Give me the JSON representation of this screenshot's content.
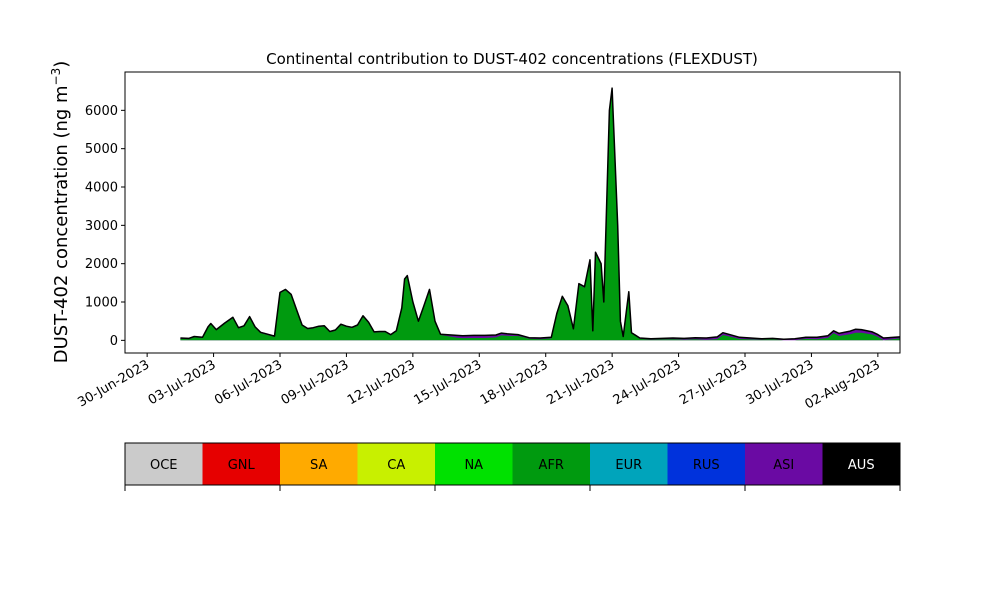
{
  "chart_data": {
    "type": "area",
    "title": "Continental contribution to DUST-402 concentrations (FLEXDUST)",
    "ylabel_main": "DUST-402 concentration (ng m",
    "ylabel_exp": "−3",
    "ylabel_close": ")",
    "ylim": [
      -330,
      7000
    ],
    "xlim": [
      "2023-06-29",
      "2023-08-03"
    ],
    "grid": false,
    "yticks": [
      0,
      1000,
      2000,
      3000,
      4000,
      5000,
      6000
    ],
    "ytick_labels": [
      "0",
      "1000",
      "2000",
      "3000",
      "4000",
      "5000",
      "6000"
    ],
    "xticks": [
      "2023-06-30",
      "2023-07-03",
      "2023-07-06",
      "2023-07-09",
      "2023-07-12",
      "2023-07-15",
      "2023-07-18",
      "2023-07-21",
      "2023-07-24",
      "2023-07-27",
      "2023-07-30",
      "2023-08-02"
    ],
    "xtick_labels": [
      "30-Jun-2023",
      "03-Jul-2023",
      "06-Jul-2023",
      "09-Jul-2023",
      "12-Jul-2023",
      "15-Jul-2023",
      "18-Jul-2023",
      "21-Jul-2023",
      "24-Jul-2023",
      "27-Jul-2023",
      "30-Jul-2023",
      "02-Aug-2023"
    ],
    "series": [
      {
        "name": "AFR",
        "color": "#009a0f"
      },
      {
        "name": "ASI",
        "color": "#6a0aa3"
      }
    ],
    "total_points": [
      [
        "2023-07-01T12:00",
        60
      ],
      [
        "2023-07-01T21:00",
        50
      ],
      [
        "2023-07-02T03:00",
        100
      ],
      [
        "2023-07-02T12:00",
        80
      ],
      [
        "2023-07-02T18:00",
        350
      ],
      [
        "2023-07-02T21:00",
        440
      ],
      [
        "2023-07-03T03:00",
        280
      ],
      [
        "2023-07-03T12:00",
        450
      ],
      [
        "2023-07-03T21:00",
        600
      ],
      [
        "2023-07-04T03:00",
        330
      ],
      [
        "2023-07-04T09:00",
        380
      ],
      [
        "2023-07-04T15:00",
        620
      ],
      [
        "2023-07-04T21:00",
        350
      ],
      [
        "2023-07-05T03:00",
        210
      ],
      [
        "2023-07-05T09:00",
        170
      ],
      [
        "2023-07-05T18:00",
        110
      ],
      [
        "2023-07-06T00:00",
        1250
      ],
      [
        "2023-07-06T06:00",
        1330
      ],
      [
        "2023-07-06T12:00",
        1200
      ],
      [
        "2023-07-06T18:00",
        800
      ],
      [
        "2023-07-07T00:00",
        400
      ],
      [
        "2023-07-07T06:00",
        310
      ],
      [
        "2023-07-07T12:00",
        330
      ],
      [
        "2023-07-07T18:00",
        370
      ],
      [
        "2023-07-08T00:00",
        380
      ],
      [
        "2023-07-08T06:00",
        230
      ],
      [
        "2023-07-08T12:00",
        270
      ],
      [
        "2023-07-08T18:00",
        420
      ],
      [
        "2023-07-09T00:00",
        370
      ],
      [
        "2023-07-09T06:00",
        340
      ],
      [
        "2023-07-09T12:00",
        400
      ],
      [
        "2023-07-09T18:00",
        640
      ],
      [
        "2023-07-10T00:00",
        470
      ],
      [
        "2023-07-10T06:00",
        220
      ],
      [
        "2023-07-10T12:00",
        230
      ],
      [
        "2023-07-10T18:00",
        230
      ],
      [
        "2023-07-11T00:00",
        150
      ],
      [
        "2023-07-11T06:00",
        250
      ],
      [
        "2023-07-11T12:00",
        850
      ],
      [
        "2023-07-11T15:00",
        1600
      ],
      [
        "2023-07-11T18:00",
        1690
      ],
      [
        "2023-07-12T00:00",
        1000
      ],
      [
        "2023-07-12T06:00",
        500
      ],
      [
        "2023-07-12T12:00",
        900
      ],
      [
        "2023-07-12T18:00",
        1330
      ],
      [
        "2023-07-13T00:00",
        500
      ],
      [
        "2023-07-13T06:00",
        160
      ],
      [
        "2023-07-13T18:00",
        140
      ],
      [
        "2023-07-14T06:00",
        120
      ],
      [
        "2023-07-14T18:00",
        130
      ],
      [
        "2023-07-15T06:00",
        130
      ],
      [
        "2023-07-15T18:00",
        140
      ],
      [
        "2023-07-16T00:00",
        190
      ],
      [
        "2023-07-16T06:00",
        170
      ],
      [
        "2023-07-16T18:00",
        150
      ],
      [
        "2023-07-17T06:00",
        70
      ],
      [
        "2023-07-17T18:00",
        60
      ],
      [
        "2023-07-18T06:00",
        80
      ],
      [
        "2023-07-18T12:00",
        700
      ],
      [
        "2023-07-18T18:00",
        1150
      ],
      [
        "2023-07-19T00:00",
        900
      ],
      [
        "2023-07-19T06:00",
        300
      ],
      [
        "2023-07-19T12:00",
        1480
      ],
      [
        "2023-07-19T18:00",
        1400
      ],
      [
        "2023-07-20T00:00",
        2100
      ],
      [
        "2023-07-20T03:00",
        250
      ],
      [
        "2023-07-20T06:00",
        2300
      ],
      [
        "2023-07-20T12:00",
        2000
      ],
      [
        "2023-07-20T15:00",
        1000
      ],
      [
        "2023-07-20T21:00",
        6000
      ],
      [
        "2023-07-21T00:00",
        6580
      ],
      [
        "2023-07-21T06:00",
        3000
      ],
      [
        "2023-07-21T09:00",
        500
      ],
      [
        "2023-07-21T12:00",
        100
      ],
      [
        "2023-07-21T18:00",
        1270
      ],
      [
        "2023-07-21T21:00",
        200
      ],
      [
        "2023-07-22T06:00",
        60
      ],
      [
        "2023-07-22T18:00",
        40
      ],
      [
        "2023-07-23T06:00",
        50
      ],
      [
        "2023-07-23T18:00",
        60
      ],
      [
        "2023-07-24T06:00",
        50
      ],
      [
        "2023-07-24T18:00",
        70
      ],
      [
        "2023-07-25T06:00",
        60
      ],
      [
        "2023-07-25T18:00",
        90
      ],
      [
        "2023-07-26T00:00",
        200
      ],
      [
        "2023-07-26T06:00",
        160
      ],
      [
        "2023-07-26T18:00",
        80
      ],
      [
        "2023-07-27T06:00",
        60
      ],
      [
        "2023-07-27T18:00",
        40
      ],
      [
        "2023-07-28T06:00",
        50
      ],
      [
        "2023-07-28T18:00",
        30
      ],
      [
        "2023-07-29T06:00",
        40
      ],
      [
        "2023-07-29T18:00",
        80
      ],
      [
        "2023-07-30T06:00",
        80
      ],
      [
        "2023-07-30T18:00",
        120
      ],
      [
        "2023-07-31T00:00",
        250
      ],
      [
        "2023-07-31T06:00",
        180
      ],
      [
        "2023-07-31T18:00",
        240
      ],
      [
        "2023-08-01T00:00",
        290
      ],
      [
        "2023-08-01T06:00",
        280
      ],
      [
        "2023-08-01T18:00",
        220
      ],
      [
        "2023-08-02T00:00",
        150
      ],
      [
        "2023-08-02T06:00",
        60
      ],
      [
        "2023-08-02T18:00",
        80
      ],
      [
        "2023-08-03T00:00",
        90
      ]
    ],
    "asi_points": [
      [
        "2023-07-01T12:00",
        20
      ],
      [
        "2023-07-13T06:00",
        20
      ],
      [
        "2023-07-14T00:00",
        60
      ],
      [
        "2023-07-15T00:00",
        70
      ],
      [
        "2023-07-16T00:00",
        60
      ],
      [
        "2023-07-17T00:00",
        30
      ],
      [
        "2023-07-19T00:00",
        30
      ],
      [
        "2023-07-22T00:00",
        20
      ],
      [
        "2023-07-24T00:00",
        30
      ],
      [
        "2023-07-26T00:00",
        60
      ],
      [
        "2023-07-28T00:00",
        20
      ],
      [
        "2023-07-31T00:00",
        60
      ],
      [
        "2023-08-01T00:00",
        90
      ],
      [
        "2023-08-02T00:00",
        60
      ],
      [
        "2023-08-03T00:00",
        40
      ]
    ]
  },
  "legend": {
    "items": [
      {
        "label": "OCE",
        "color": "#cbcbcb"
      },
      {
        "label": "GNL",
        "color": "#e60000"
      },
      {
        "label": "SA",
        "color": "#ffaa00"
      },
      {
        "label": "CA",
        "color": "#c8f000"
      },
      {
        "label": "NA",
        "color": "#00e100"
      },
      {
        "label": "AFR",
        "color": "#009a0f"
      },
      {
        "label": "EUR",
        "color": "#00a4bb"
      },
      {
        "label": "RUS",
        "color": "#0032dc"
      },
      {
        "label": "ASI",
        "color": "#6a0aa3"
      },
      {
        "label": "AUS",
        "color": "#000000"
      }
    ]
  }
}
